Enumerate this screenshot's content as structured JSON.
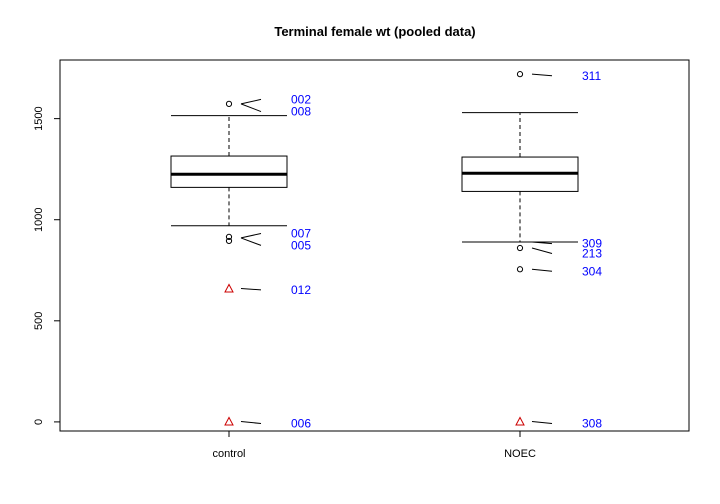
{
  "chart_data": {
    "type": "boxplot",
    "title": "Terminal female wt (pooled data)",
    "xlabel": "",
    "ylabel": "",
    "categories": [
      "control",
      "NOEC"
    ],
    "ylim": [
      -45,
      1790
    ],
    "yticks": [
      0,
      500,
      1000,
      1500
    ],
    "grid": false,
    "boxes": [
      {
        "category": "control",
        "whisker_low": 970,
        "q1": 1160,
        "median": 1225,
        "q3": 1315,
        "whisker_high": 1515,
        "outliers": [
          1573,
          915,
          895
        ]
      },
      {
        "category": "NOEC",
        "whisker_low": 890,
        "q1": 1140,
        "median": 1230,
        "q3": 1310,
        "whisker_high": 1530,
        "outliers": [
          1720,
          860,
          755
        ]
      }
    ],
    "triangle_points": [
      {
        "category": "control",
        "y": 660
      },
      {
        "category": "control",
        "y": 2
      },
      {
        "category": "NOEC",
        "y": 2
      }
    ],
    "annotations": [
      {
        "text": "002",
        "category": "control",
        "y": 1595,
        "point_y": 1573
      },
      {
        "text": "008",
        "category": "control",
        "y": 1535,
        "point_y": 1573
      },
      {
        "text": "007",
        "category": "control",
        "y": 932,
        "point_y": 910
      },
      {
        "text": "005",
        "category": "control",
        "y": 873,
        "point_y": 910
      },
      {
        "text": "012",
        "category": "control",
        "y": 653,
        "point_y": 660
      },
      {
        "text": "006",
        "category": "control",
        "y": -8,
        "point_y": 2
      },
      {
        "text": "311",
        "category": "NOEC",
        "y": 1712,
        "point_y": 1720
      },
      {
        "text": "309",
        "category": "NOEC",
        "y": 882,
        "point_y": 890
      },
      {
        "text": "213",
        "category": "NOEC",
        "y": 833,
        "point_y": 860
      },
      {
        "text": "304",
        "category": "NOEC",
        "y": 745,
        "point_y": 755
      },
      {
        "text": "308",
        "category": "NOEC",
        "y": -8,
        "point_y": 2
      }
    ],
    "colors": {
      "annotation_text": "#0000ff",
      "triangle": "#cc0000",
      "axis": "#000000"
    }
  }
}
